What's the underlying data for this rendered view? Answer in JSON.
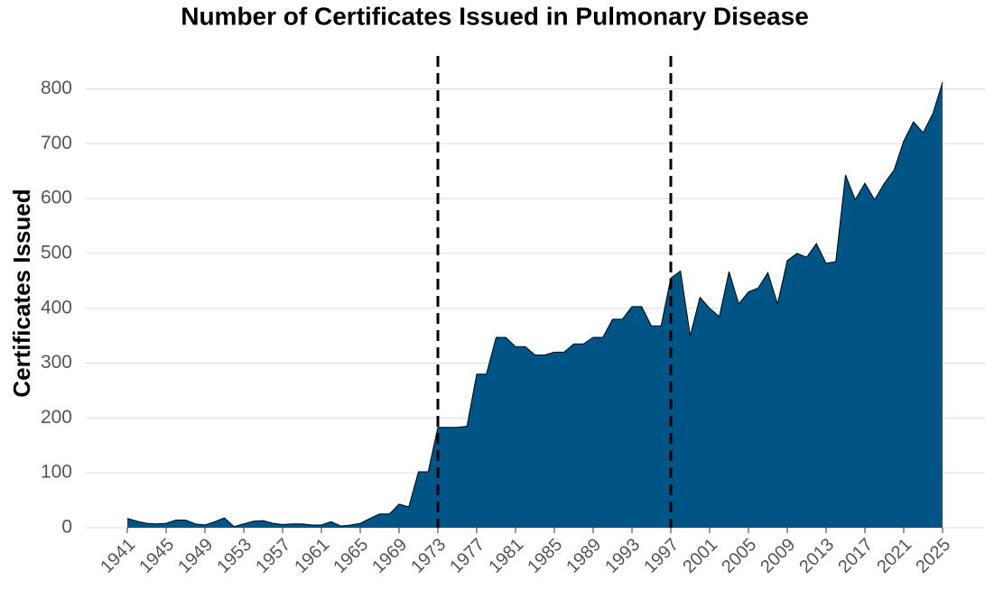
{
  "chart_data": {
    "type": "area",
    "title": "Number of Certificates Issued in Pulmonary Disease",
    "y_label": "Certificates Issued",
    "color": "#005587",
    "x": [
      1941,
      1942,
      1943,
      1944,
      1945,
      1946,
      1947,
      1948,
      1949,
      1950,
      1951,
      1952,
      1953,
      1954,
      1955,
      1956,
      1957,
      1958,
      1959,
      1960,
      1961,
      1962,
      1963,
      1964,
      1965,
      1966,
      1967,
      1968,
      1969,
      1970,
      1971,
      1972,
      1973,
      1974,
      1975,
      1976,
      1977,
      1978,
      1979,
      1980,
      1981,
      1982,
      1983,
      1984,
      1985,
      1986,
      1987,
      1988,
      1989,
      1990,
      1991,
      1992,
      1993,
      1994,
      1995,
      1996,
      1997,
      1998,
      1999,
      2000,
      2001,
      2002,
      2003,
      2004,
      2005,
      2006,
      2007,
      2008,
      2009,
      2010,
      2011,
      2012,
      2013,
      2014,
      2015,
      2016,
      2017,
      2018,
      2019,
      2020,
      2021,
      2022,
      2023,
      2024,
      2025
    ],
    "values": [
      17,
      12,
      8,
      7,
      8,
      14,
      14,
      7,
      5,
      11,
      18,
      2,
      7,
      12,
      13,
      8,
      6,
      7,
      7,
      5,
      5,
      11,
      3,
      5,
      8,
      17,
      25,
      25,
      43,
      38,
      102,
      102,
      183,
      183,
      183,
      185,
      280,
      280,
      347,
      347,
      330,
      330,
      315,
      315,
      320,
      320,
      335,
      335,
      347,
      347,
      380,
      380,
      403,
      403,
      368,
      368,
      455,
      468,
      350,
      420,
      400,
      385,
      467,
      408,
      430,
      437,
      465,
      408,
      487,
      500,
      493,
      518,
      482,
      485,
      643,
      598,
      628,
      598,
      628,
      652,
      705,
      740,
      720,
      755,
      812
    ],
    "xlim": [
      1941,
      2025
    ],
    "xticks": [
      1941,
      1945,
      1949,
      1953,
      1957,
      1961,
      1965,
      1969,
      1973,
      1977,
      1981,
      1985,
      1989,
      1993,
      1997,
      2001,
      2005,
      2009,
      2013,
      2017,
      2021,
      2025
    ],
    "ylim": [
      0,
      860
    ],
    "yticks": [
      0,
      100,
      200,
      300,
      400,
      500,
      600,
      700,
      800
    ],
    "vlines": [
      1973,
      1997
    ],
    "grid": true
  }
}
